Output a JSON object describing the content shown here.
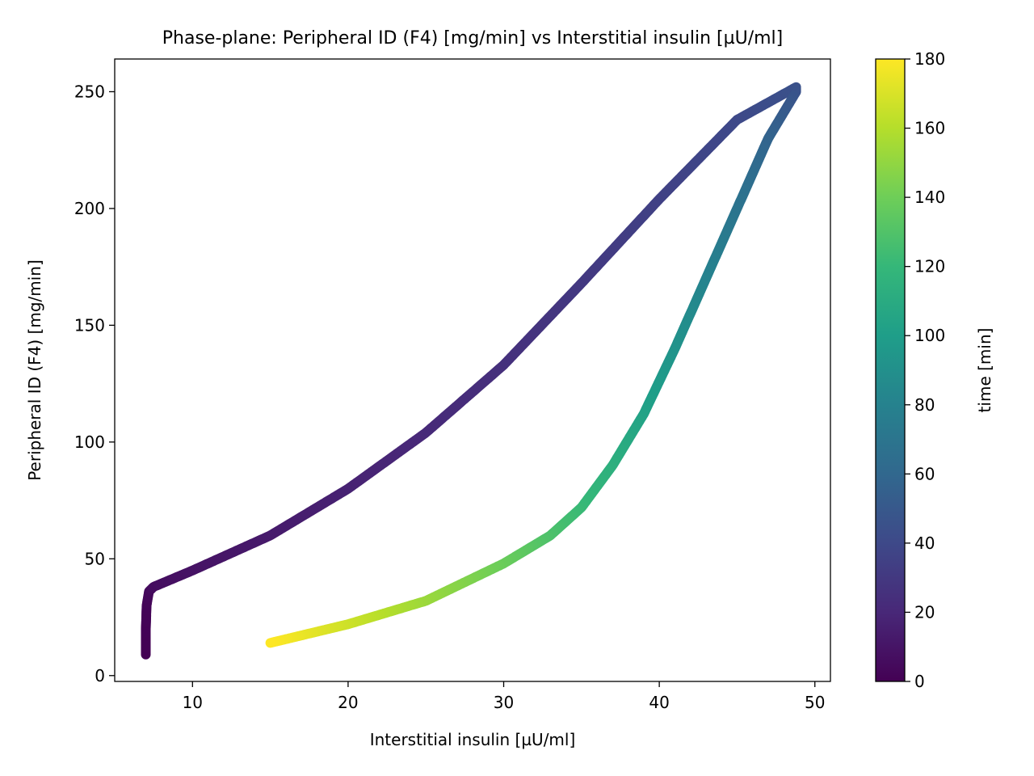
{
  "chart_data": {
    "type": "scatter",
    "title": "Phase-plane: Peripheral ID (F4) [mg/min] vs Interstitial insulin [µU/ml]",
    "xlabel": "Interstitial insulin [µU/ml]",
    "ylabel": "Peripheral ID (F4) [mg/min]",
    "xlim": [
      5,
      51
    ],
    "ylim": [
      -2.5,
      264
    ],
    "xticks": [
      "10",
      "20",
      "30",
      "40",
      "50"
    ],
    "yticks": [
      "0",
      "50",
      "100",
      "150",
      "200",
      "250"
    ],
    "grid": false,
    "colorbar": {
      "label": "time [min]",
      "range": [
        0,
        180
      ],
      "ticks": [
        "0",
        "20",
        "40",
        "60",
        "80",
        "100",
        "120",
        "140",
        "160",
        "180"
      ],
      "colormap": [
        "#440154",
        "#482878",
        "#3e4989",
        "#31688e",
        "#26828e",
        "#1f9e89",
        "#35b779",
        "#6ece58",
        "#b5de2b",
        "#fde725"
      ]
    },
    "series": [
      {
        "x": [
          7.0,
          7.0,
          7.05,
          7.2,
          7.5,
          10,
          15,
          20,
          25,
          30,
          35,
          40,
          45,
          48.8,
          48.8,
          47,
          45,
          43,
          41,
          39,
          37,
          35,
          33,
          30,
          25,
          20,
          15
        ],
        "y": [
          9,
          20,
          30,
          36,
          38,
          45,
          60,
          80,
          104,
          133,
          168,
          204,
          238,
          252,
          250,
          230,
          200,
          170,
          140,
          112,
          90,
          72,
          60,
          48,
          32,
          22,
          14
        ],
        "t": [
          0,
          1,
          2,
          4,
          6,
          9,
          13,
          17,
          21,
          25,
          30,
          35,
          40,
          45,
          46,
          57,
          69,
          80,
          92,
          103,
          113,
          121,
          128,
          138,
          152,
          166,
          180
        ]
      }
    ]
  }
}
